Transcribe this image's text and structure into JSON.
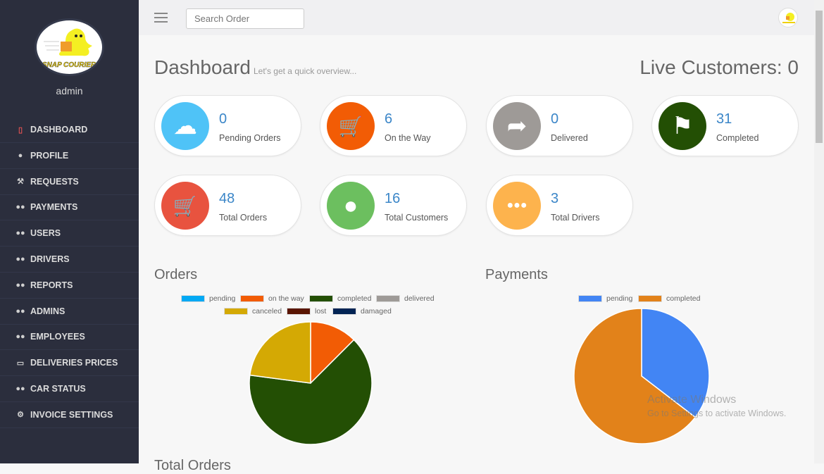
{
  "sidebar": {
    "logo_text": "SNAP COURIER",
    "username": "admin",
    "items": [
      {
        "label": "DASHBOARD",
        "icon": "bookmark-icon"
      },
      {
        "label": "PROFILE",
        "icon": "user-icon"
      },
      {
        "label": "REQUESTS",
        "icon": "gavel-icon"
      },
      {
        "label": "PAYMENTS",
        "icon": "users-icon"
      },
      {
        "label": "USERS",
        "icon": "users-icon"
      },
      {
        "label": "DRIVERS",
        "icon": "users-icon"
      },
      {
        "label": "REPORTS",
        "icon": "users-icon"
      },
      {
        "label": "ADMINS",
        "icon": "users-icon"
      },
      {
        "label": "EMPLOYEES",
        "icon": "users-icon"
      },
      {
        "label": "DELIVERIES PRICES",
        "icon": "money-icon"
      },
      {
        "label": "CAR STATUS",
        "icon": "users-icon"
      },
      {
        "label": "INVOICE SETTINGS",
        "icon": "gear-icon"
      }
    ]
  },
  "topbar": {
    "search_placeholder": "Search Order"
  },
  "header": {
    "title": "Dashboard",
    "subtitle": "Let's get a quick overview...",
    "live_customers": "Live Customers: 0"
  },
  "cards": [
    {
      "value": "0",
      "label": "Pending Orders",
      "icon": "cloud-upload-icon",
      "color": "#4fc3f7"
    },
    {
      "value": "6",
      "label": "On the Way",
      "icon": "cart-icon",
      "color": "#f25c05"
    },
    {
      "value": "0",
      "label": "Delivered",
      "icon": "share-arrow-icon",
      "color": "#9e9a97"
    },
    {
      "value": "31",
      "label": "Completed",
      "icon": "flag-icon",
      "color": "#234f04"
    },
    {
      "value": "48",
      "label": "Total Orders",
      "icon": "cart-icon",
      "color": "#e8533f"
    },
    {
      "value": "16",
      "label": "Total Customers",
      "icon": "user-icon",
      "color": "#6cbf5f"
    },
    {
      "value": "3",
      "label": "Total Drivers",
      "icon": "users-icon",
      "color": "#fdb34d"
    }
  ],
  "chart_data": [
    {
      "type": "pie",
      "title": "Orders",
      "legend": "top",
      "categories": [
        "pending",
        "on the way",
        "completed",
        "delivered",
        "canceled",
        "lost",
        "damaged"
      ],
      "values": [
        0,
        6,
        31,
        0,
        11,
        0,
        0
      ],
      "colors": [
        "#03a9f4",
        "#f25c05",
        "#234f04",
        "#9e9a97",
        "#d4a904",
        "#5a1502",
        "#022454"
      ]
    },
    {
      "type": "pie",
      "title": "Payments",
      "legend": "top",
      "categories": [
        "pending",
        "completed"
      ],
      "values": [
        17,
        31
      ],
      "colors": [
        "#4285f4",
        "#e2821a"
      ]
    }
  ],
  "next_section": "Total Orders",
  "watermark": {
    "line1": "Activate Windows",
    "line2": "Go to Settings to activate Windows."
  }
}
